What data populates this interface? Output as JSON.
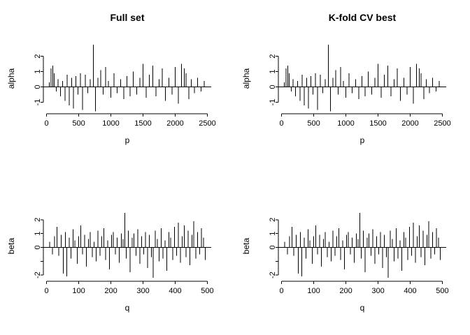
{
  "page": {
    "background": "#ffffff",
    "foreground": "#000000"
  },
  "series": {
    "alpha": {
      "x": [
        40,
        70,
        95,
        120,
        150,
        180,
        215,
        250,
        285,
        320,
        355,
        390,
        420,
        455,
        490,
        525,
        560,
        600,
        640,
        680,
        730,
        760,
        800,
        840,
        880,
        920,
        960,
        1000,
        1050,
        1100,
        1150,
        1200,
        1250,
        1300,
        1350,
        1400,
        1450,
        1500,
        1550,
        1600,
        1650,
        1700,
        1750,
        1800,
        1850,
        1900,
        1950,
        2000,
        2050,
        2100,
        2140,
        2170,
        2210,
        2250,
        2300,
        2350,
        2400,
        2450
      ],
      "y": [
        0.3,
        1.2,
        1.4,
        0.9,
        -0.3,
        0.5,
        -0.6,
        0.4,
        -0.9,
        0.8,
        -1.2,
        0.6,
        -1.4,
        0.7,
        -0.5,
        0.9,
        -1.5,
        0.8,
        -0.4,
        0.5,
        2.75,
        -1.6,
        0.6,
        1.1,
        -0.5,
        1.3,
        0.4,
        -0.7,
        0.9,
        -0.4,
        0.5,
        -0.8,
        0.7,
        -0.6,
        1.0,
        -0.5,
        0.6,
        1.5,
        -0.7,
        0.8,
        1.4,
        -0.6,
        0.5,
        1.2,
        -0.9,
        0.6,
        -0.5,
        1.3,
        -1.1,
        1.5,
        1.2,
        0.9,
        -0.8,
        0.5,
        -0.4,
        0.6,
        -0.3,
        0.4
      ]
    },
    "beta": {
      "x": [
        10,
        18,
        25,
        32,
        38,
        45,
        52,
        58,
        63,
        70,
        76,
        82,
        88,
        95,
        100,
        106,
        112,
        118,
        124,
        130,
        136,
        142,
        148,
        154,
        160,
        166,
        172,
        178,
        184,
        190,
        196,
        202,
        208,
        214,
        220,
        226,
        232,
        238,
        243,
        248,
        254,
        260,
        266,
        272,
        278,
        284,
        290,
        296,
        302,
        308,
        314,
        320,
        326,
        332,
        338,
        344,
        350,
        356,
        362,
        368,
        374,
        380,
        386,
        392,
        398,
        404,
        410,
        416,
        422,
        428,
        434,
        440,
        446,
        452,
        458,
        464,
        470,
        476,
        482,
        488,
        494
      ],
      "y": [
        0.4,
        -0.5,
        0.8,
        1.5,
        -0.6,
        0.9,
        -1.9,
        1.1,
        -2.1,
        0.7,
        -0.8,
        1.3,
        0.5,
        -1.2,
        0.8,
        1.6,
        -0.5,
        0.9,
        -1.4,
        0.6,
        1.1,
        -0.7,
        0.4,
        -1.0,
        1.2,
        -0.6,
        0.8,
        1.4,
        -0.9,
        0.5,
        -1.6,
        0.9,
        1.1,
        -0.5,
        0.7,
        -1.1,
        1.0,
        0.6,
        2.5,
        -0.8,
        1.2,
        -1.8,
        0.7,
        1.0,
        -0.6,
        1.3,
        -1.2,
        0.8,
        -0.5,
        1.1,
        -1.5,
        0.9,
        -0.7,
        -2.2,
        1.2,
        0.6,
        -1.0,
        1.4,
        -0.8,
        0.5,
        -1.7,
        1.1,
        0.7,
        -0.9,
        1.5,
        -0.6,
        1.8,
        -1.1,
        0.8,
        1.6,
        -0.7,
        1.2,
        -1.3,
        0.9,
        1.9,
        -0.8,
        1.1,
        -0.5,
        1.4,
        0.7,
        -0.9
      ]
    }
  },
  "chart_data": [
    {
      "type": "bar",
      "plot_style": "vertical-spikes-from-zero",
      "title": "Full set",
      "xlabel": "p",
      "ylabel": "alpha",
      "xlim": [
        -50,
        2560
      ],
      "ylim": [
        -1.75,
        2.85
      ],
      "xticks": [
        0,
        500,
        1000,
        1500,
        2000,
        2500
      ],
      "ytick_values": [
        -1,
        0,
        1,
        2
      ],
      "ytick_labels": [
        "-1",
        "0",
        "1",
        "2"
      ],
      "zero_line": true,
      "grid": false,
      "legend": "none",
      "series_ref": "alpha"
    },
    {
      "type": "bar",
      "plot_style": "vertical-spikes-from-zero",
      "title": "K-fold CV best",
      "xlabel": "p",
      "ylabel": "alpha",
      "xlim": [
        -50,
        2560
      ],
      "ylim": [
        -1.75,
        2.85
      ],
      "xticks": [
        0,
        500,
        1000,
        1500,
        2000,
        2500
      ],
      "ytick_values": [
        -1,
        0,
        1,
        2
      ],
      "ytick_labels": [
        "-1",
        "0",
        "1",
        "2"
      ],
      "zero_line": true,
      "grid": false,
      "legend": "none",
      "series_ref": "alpha"
    },
    {
      "type": "bar",
      "plot_style": "vertical-spikes-from-zero",
      "title": "",
      "xlabel": "q",
      "ylabel": "beta",
      "xlim": [
        -10,
        512
      ],
      "ylim": [
        -2.45,
        2.65
      ],
      "xticks": [
        0,
        100,
        200,
        300,
        400,
        500
      ],
      "ytick_values": [
        -2,
        -1,
        0,
        1,
        2
      ],
      "ytick_labels": [
        "-2",
        "",
        "0",
        "1",
        "2"
      ],
      "zero_line": true,
      "grid": false,
      "legend": "none",
      "series_ref": "beta"
    },
    {
      "type": "bar",
      "plot_style": "vertical-spikes-from-zero",
      "title": "",
      "xlabel": "q",
      "ylabel": "beta",
      "xlim": [
        -10,
        512
      ],
      "ylim": [
        -2.45,
        2.65
      ],
      "xticks": [
        0,
        100,
        200,
        300,
        400,
        500
      ],
      "ytick_values": [
        -2,
        -1,
        0,
        1,
        2
      ],
      "ytick_labels": [
        "-2",
        "",
        "0",
        "1",
        "2"
      ],
      "zero_line": true,
      "grid": false,
      "legend": "none",
      "series_ref": "beta"
    }
  ]
}
